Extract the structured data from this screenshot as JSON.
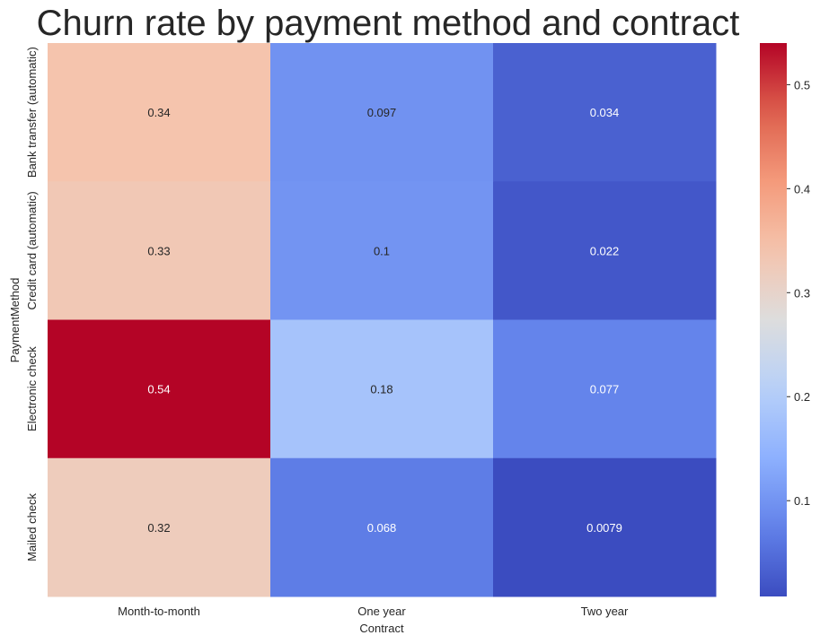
{
  "chart_data": {
    "type": "heatmap",
    "title": "Churn rate by payment method and contract",
    "xlabel": "Contract",
    "ylabel": "PaymentMethod",
    "x_categories": [
      "Month-to-month",
      "One year",
      "Two year"
    ],
    "y_categories": [
      "Bank transfer (automatic)",
      "Credit card (automatic)",
      "Electronic check",
      "Mailed check"
    ],
    "values": [
      [
        0.34,
        0.097,
        0.034
      ],
      [
        0.33,
        0.1,
        0.022
      ],
      [
        0.54,
        0.18,
        0.077
      ],
      [
        0.32,
        0.068,
        0.0079
      ]
    ],
    "value_labels": [
      [
        "0.34",
        "0.097",
        "0.034"
      ],
      [
        "0.33",
        "0.1",
        "0.022"
      ],
      [
        "0.54",
        "0.18",
        "0.077"
      ],
      [
        "0.32",
        "0.068",
        "0.0079"
      ]
    ],
    "colormap": "coolwarm",
    "vmin": 0.0079,
    "vmax": 0.54,
    "colorbar_ticks": [
      0.1,
      0.2,
      0.3,
      0.4,
      0.5
    ],
    "colorbar_tick_labels": [
      "0.1",
      "0.2",
      "0.3",
      "0.4",
      "0.5"
    ],
    "grid": false,
    "legend": "colorbar-right"
  }
}
